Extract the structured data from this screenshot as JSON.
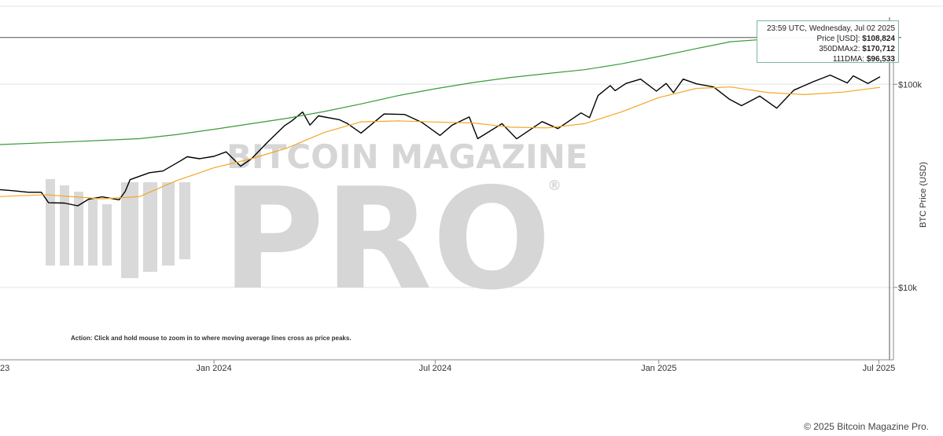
{
  "chart_data": {
    "type": "line",
    "title": "",
    "y_scale": "log",
    "ylabel": "BTC Price (USD)",
    "ylim": [
      4400,
      260000
    ],
    "xlim": [
      "2023-07-09",
      "2025-07-13"
    ],
    "y_ticks": [
      {
        "value": 10000,
        "label": "$10k"
      },
      {
        "value": 100000,
        "label": "$100k"
      }
    ],
    "x_ticks": [
      {
        "date": "2023-07-01",
        "label": "23"
      },
      {
        "date": "2024-01-01",
        "label": "Jan 2024"
      },
      {
        "date": "2024-07-01",
        "label": "Jul 2024"
      },
      {
        "date": "2025-01-01",
        "label": "Jan 2025"
      },
      {
        "date": "2025-07-01",
        "label": "Jul 2025"
      }
    ],
    "grid": true,
    "reference_line": {
      "value": 170000
    },
    "series": [
      {
        "name": "Price [USD]",
        "color": "#000000",
        "points": [
          [
            "2023-07-09",
            30300
          ],
          [
            "2023-07-20",
            29900
          ],
          [
            "2023-08-01",
            29400
          ],
          [
            "2023-08-12",
            29400
          ],
          [
            "2023-08-18",
            26100
          ],
          [
            "2023-08-31",
            26000
          ],
          [
            "2023-09-11",
            25200
          ],
          [
            "2023-09-20",
            27200
          ],
          [
            "2023-10-01",
            27900
          ],
          [
            "2023-10-15",
            27000
          ],
          [
            "2023-10-20",
            29700
          ],
          [
            "2023-10-24",
            33900
          ],
          [
            "2023-11-09",
            36700
          ],
          [
            "2023-11-20",
            37400
          ],
          [
            "2023-12-04",
            41800
          ],
          [
            "2023-12-10",
            44000
          ],
          [
            "2023-12-20",
            43000
          ],
          [
            "2024-01-01",
            44200
          ],
          [
            "2024-01-11",
            46500
          ],
          [
            "2024-01-23",
            39500
          ],
          [
            "2024-02-01",
            43000
          ],
          [
            "2024-02-14",
            51800
          ],
          [
            "2024-02-28",
            62500
          ],
          [
            "2024-03-05",
            66000
          ],
          [
            "2024-03-14",
            73000
          ],
          [
            "2024-03-20",
            63000
          ],
          [
            "2024-03-27",
            69900
          ],
          [
            "2024-04-13",
            67000
          ],
          [
            "2024-04-20",
            64000
          ],
          [
            "2024-05-01",
            57500
          ],
          [
            "2024-05-20",
            71400
          ],
          [
            "2024-06-06",
            71000
          ],
          [
            "2024-06-20",
            65000
          ],
          [
            "2024-07-05",
            56000
          ],
          [
            "2024-07-15",
            63000
          ],
          [
            "2024-07-29",
            69000
          ],
          [
            "2024-08-05",
            54000
          ],
          [
            "2024-08-25",
            64000
          ],
          [
            "2024-09-06",
            53900
          ],
          [
            "2024-09-27",
            65500
          ],
          [
            "2024-10-10",
            60500
          ],
          [
            "2024-10-29",
            72300
          ],
          [
            "2024-11-05",
            68500
          ],
          [
            "2024-11-12",
            88000
          ],
          [
            "2024-11-22",
            98500
          ],
          [
            "2024-11-26",
            93000
          ],
          [
            "2024-12-05",
            101000
          ],
          [
            "2024-12-17",
            106000
          ],
          [
            "2024-12-30",
            92500
          ],
          [
            "2025-01-07",
            101000
          ],
          [
            "2025-01-13",
            91000
          ],
          [
            "2025-01-21",
            106000
          ],
          [
            "2025-02-01",
            100500
          ],
          [
            "2025-02-15",
            97000
          ],
          [
            "2025-02-28",
            84500
          ],
          [
            "2025-03-10",
            78500
          ],
          [
            "2025-03-25",
            87500
          ],
          [
            "2025-04-08",
            76300
          ],
          [
            "2025-04-22",
            93500
          ],
          [
            "2025-05-08",
            103000
          ],
          [
            "2025-05-22",
            111000
          ],
          [
            "2025-06-05",
            101500
          ],
          [
            "2025-06-10",
            110000
          ],
          [
            "2025-06-22",
            101000
          ],
          [
            "2025-07-02",
            108824
          ]
        ]
      },
      {
        "name": "350DMAx2",
        "color": "#3a9a3a",
        "points": [
          [
            "2023-07-09",
            50500
          ],
          [
            "2023-09-01",
            52000
          ],
          [
            "2023-11-01",
            54000
          ],
          [
            "2023-12-01",
            56500
          ],
          [
            "2024-01-01",
            60000
          ],
          [
            "2024-02-01",
            64000
          ],
          [
            "2024-03-01",
            68000
          ],
          [
            "2024-04-01",
            73500
          ],
          [
            "2024-05-01",
            80000
          ],
          [
            "2024-06-01",
            88000
          ],
          [
            "2024-07-01",
            95000
          ],
          [
            "2024-08-01",
            102000
          ],
          [
            "2024-09-01",
            108000
          ],
          [
            "2024-10-01",
            113000
          ],
          [
            "2024-11-01",
            118000
          ],
          [
            "2024-12-01",
            126000
          ],
          [
            "2025-01-01",
            137000
          ],
          [
            "2025-02-01",
            150000
          ],
          [
            "2025-03-01",
            162000
          ],
          [
            "2025-04-01",
            167000
          ],
          [
            "2025-05-01",
            169000
          ],
          [
            "2025-06-01",
            170300
          ],
          [
            "2025-07-02",
            170712
          ]
        ]
      },
      {
        "name": "111DMA",
        "color": "#f5a623",
        "points": [
          [
            "2023-07-09",
            28000
          ],
          [
            "2023-08-15",
            28600
          ],
          [
            "2023-10-01",
            27300
          ],
          [
            "2023-11-01",
            28000
          ],
          [
            "2023-12-01",
            33500
          ],
          [
            "2024-01-01",
            38800
          ],
          [
            "2024-02-01",
            43000
          ],
          [
            "2024-03-01",
            48500
          ],
          [
            "2024-04-01",
            58000
          ],
          [
            "2024-05-01",
            65300
          ],
          [
            "2024-06-01",
            66000
          ],
          [
            "2024-07-01",
            65200
          ],
          [
            "2024-08-01",
            64500
          ],
          [
            "2024-09-01",
            61500
          ],
          [
            "2024-10-01",
            61000
          ],
          [
            "2024-11-01",
            64000
          ],
          [
            "2024-12-01",
            73000
          ],
          [
            "2025-01-01",
            86000
          ],
          [
            "2025-02-01",
            95500
          ],
          [
            "2025-03-01",
            97000
          ],
          [
            "2025-04-01",
            91000
          ],
          [
            "2025-05-01",
            89000
          ],
          [
            "2025-06-01",
            91500
          ],
          [
            "2025-07-02",
            96533
          ]
        ]
      }
    ]
  },
  "tooltip": {
    "timestamp": "23:59 UTC, Wednesday, Jul 02 2025",
    "price_label": "Price [USD]:",
    "price_value": "$108,824",
    "dma350_label": "350DMAx2:",
    "dma350_value": "$170,712",
    "dma111_label": "111DMA:",
    "dma111_value": "$96,533"
  },
  "watermark": {
    "line1": "BITCOIN MAGAZINE",
    "line2": "PRO",
    "registered": "®"
  },
  "action_note": "Action: Click and hold mouse to zoom in to where moving average lines cross as price peaks.",
  "copyright": "© 2025 Bitcoin Magazine Pro."
}
